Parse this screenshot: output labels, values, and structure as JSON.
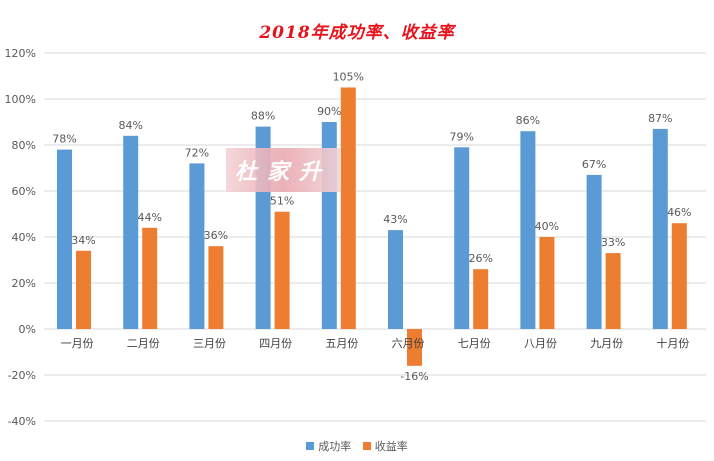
{
  "title": "2018年成功率、收益率",
  "watermark_text": "杜家升",
  "colors": {
    "series_a": "#5b9bd5",
    "series_b": "#ed7d31",
    "grid": "#d9d9d9",
    "text": "#595959"
  },
  "chart_data": {
    "type": "bar",
    "categories": [
      "一月份",
      "二月份",
      "三月份",
      "四月份",
      "五月份",
      "六月份",
      "七月份",
      "八月份",
      "九月份",
      "十月份"
    ],
    "series": [
      {
        "name": "成功率",
        "values": [
          78,
          84,
          72,
          88,
          90,
          43,
          79,
          86,
          67,
          87
        ]
      },
      {
        "name": "收益率",
        "values": [
          34,
          44,
          36,
          51,
          105,
          -16,
          26,
          40,
          33,
          46
        ]
      }
    ],
    "ylim": [
      -40,
      120
    ],
    "yticks": [
      -40,
      -20,
      0,
      20,
      40,
      60,
      80,
      100,
      120
    ],
    "value_suffix": "%",
    "grid": true,
    "legend_position": "bottom"
  }
}
